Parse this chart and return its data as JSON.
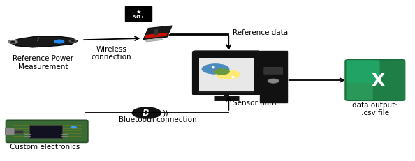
{
  "bg_color": "#ffffff",
  "fig_width": 5.94,
  "fig_height": 2.32,
  "dpi": 100,
  "labels": {
    "ref_power": "Reference Power\nMeasurement",
    "wireless": "Wireless\nconnection",
    "ref_data": "Reference data",
    "sensor_data": "Sensor data",
    "bluetooth": "Bluetooth connection",
    "custom": "Custom electronics",
    "data_output": "data output:\n.csv file"
  }
}
